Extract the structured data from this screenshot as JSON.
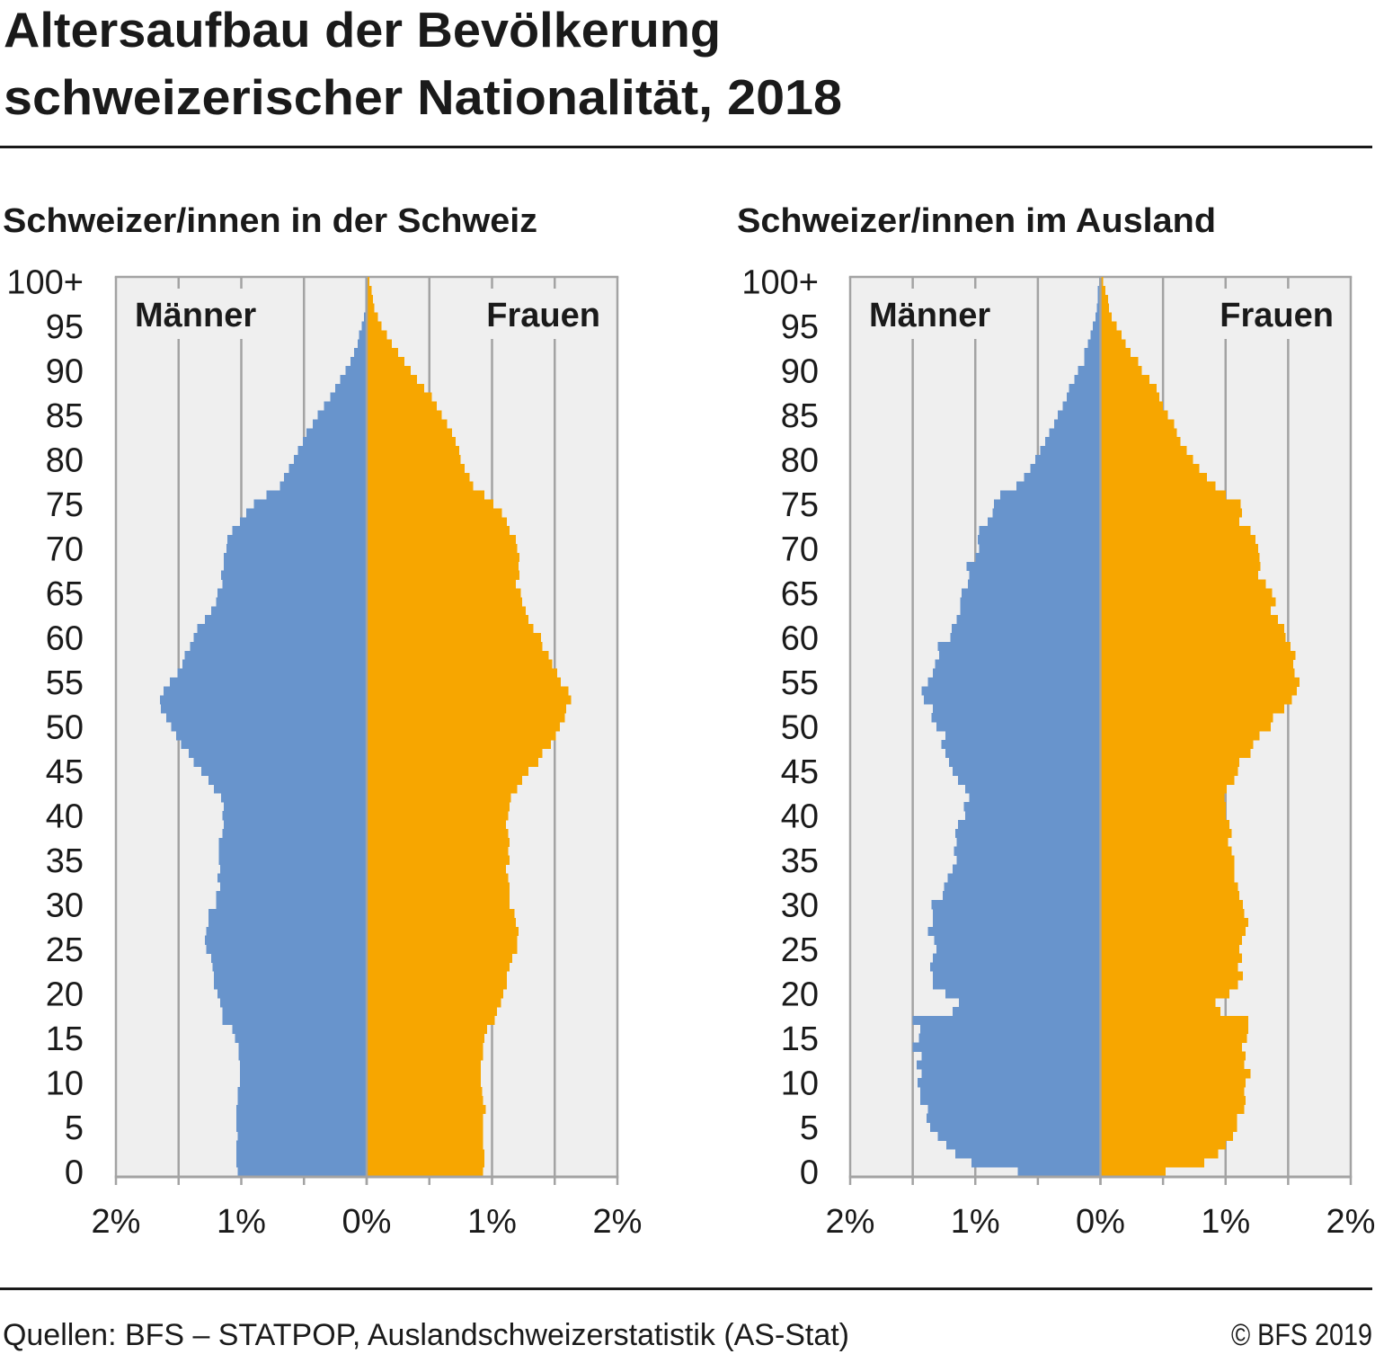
{
  "header": {
    "title_line1": "Altersaufbau der Bevölkerung",
    "title_line2": "schweizerischer Nationalität, 2018"
  },
  "footer": {
    "source": "Quellen: BFS – STATPOP, Auslandschweizerstatistik (AS-Stat)",
    "copyright": "© BFS 2019"
  },
  "colors": {
    "male": "#6894cc",
    "female": "#f7a600",
    "plot_background": "#efefef",
    "grid": "#a3a3a3",
    "text": "#1a1a1a"
  },
  "chart_data": [
    {
      "type": "bar",
      "subtype": "population-pyramid",
      "title": "Schweizer/innen in der Schweiz",
      "xlabel": "",
      "ylabel": "",
      "unit": "%",
      "xlim": [
        -2,
        2
      ],
      "ylim": [
        0,
        100
      ],
      "grid": true,
      "grid_step": 0.5,
      "xtick_values": [
        -2,
        -1,
        0,
        1,
        2
      ],
      "xtick_labels": [
        "2%",
        "1%",
        "0%",
        "1%",
        "2%"
      ],
      "ytick_values": [
        0,
        5,
        10,
        15,
        20,
        25,
        30,
        35,
        40,
        45,
        50,
        55,
        60,
        65,
        70,
        75,
        80,
        85,
        90,
        95,
        100
      ],
      "ytick_labels": [
        "0",
        "5",
        "10",
        "15",
        "20",
        "25",
        "30",
        "35",
        "40",
        "45",
        "50",
        "55",
        "60",
        "65",
        "70",
        "75",
        "80",
        "85",
        "90",
        "95",
        "100+"
      ],
      "categories": [
        "0",
        "1",
        "2",
        "3",
        "4",
        "5",
        "6",
        "7",
        "8",
        "9",
        "10",
        "11",
        "12",
        "13",
        "14",
        "15",
        "16",
        "17",
        "18",
        "19",
        "20",
        "21",
        "22",
        "23",
        "24",
        "25",
        "26",
        "27",
        "28",
        "29",
        "30",
        "31",
        "32",
        "33",
        "34",
        "35",
        "36",
        "37",
        "38",
        "39",
        "40",
        "41",
        "42",
        "43",
        "44",
        "45",
        "46",
        "47",
        "48",
        "49",
        "50",
        "51",
        "52",
        "53",
        "54",
        "55",
        "56",
        "57",
        "58",
        "59",
        "60",
        "61",
        "62",
        "63",
        "64",
        "65",
        "66",
        "67",
        "68",
        "69",
        "70",
        "71",
        "72",
        "73",
        "74",
        "75",
        "76",
        "77",
        "78",
        "79",
        "80",
        "81",
        "82",
        "83",
        "84",
        "85",
        "86",
        "87",
        "88",
        "89",
        "90",
        "91",
        "92",
        "93",
        "94",
        "95",
        "96",
        "97",
        "98",
        "99",
        "100+"
      ],
      "series": [
        {
          "name": "Männer",
          "side": "left",
          "label_position": "top-left",
          "values": [
            1.03,
            1.04,
            1.04,
            1.04,
            1.03,
            1.04,
            1.04,
            1.04,
            1.03,
            1.03,
            1.01,
            1.01,
            1.01,
            1.02,
            1.02,
            1.05,
            1.07,
            1.15,
            1.15,
            1.17,
            1.19,
            1.22,
            1.22,
            1.23,
            1.24,
            1.28,
            1.29,
            1.28,
            1.26,
            1.26,
            1.2,
            1.2,
            1.17,
            1.19,
            1.17,
            1.18,
            1.18,
            1.18,
            1.15,
            1.14,
            1.15,
            1.14,
            1.16,
            1.22,
            1.26,
            1.32,
            1.38,
            1.42,
            1.48,
            1.52,
            1.56,
            1.6,
            1.64,
            1.65,
            1.62,
            1.57,
            1.51,
            1.47,
            1.45,
            1.41,
            1.38,
            1.35,
            1.29,
            1.24,
            1.2,
            1.19,
            1.15,
            1.16,
            1.14,
            1.14,
            1.12,
            1.11,
            1.07,
            1.01,
            0.96,
            0.9,
            0.8,
            0.69,
            0.66,
            0.62,
            0.58,
            0.55,
            0.51,
            0.48,
            0.43,
            0.39,
            0.34,
            0.29,
            0.25,
            0.21,
            0.17,
            0.13,
            0.1,
            0.07,
            0.06,
            0.04,
            0.02,
            0.01,
            0.01,
            0.01,
            0.01
          ]
        },
        {
          "name": "Frauen",
          "side": "right",
          "label_position": "top-right",
          "values": [
            0.93,
            0.94,
            0.94,
            0.93,
            0.93,
            0.93,
            0.93,
            0.95,
            0.93,
            0.92,
            0.91,
            0.91,
            0.91,
            0.93,
            0.93,
            0.94,
            0.96,
            1.02,
            1.04,
            1.07,
            1.09,
            1.12,
            1.12,
            1.14,
            1.16,
            1.2,
            1.2,
            1.21,
            1.19,
            1.18,
            1.14,
            1.14,
            1.14,
            1.13,
            1.11,
            1.14,
            1.13,
            1.14,
            1.13,
            1.11,
            1.13,
            1.14,
            1.15,
            1.2,
            1.24,
            1.29,
            1.37,
            1.4,
            1.47,
            1.51,
            1.54,
            1.58,
            1.59,
            1.63,
            1.61,
            1.55,
            1.52,
            1.48,
            1.45,
            1.4,
            1.39,
            1.33,
            1.29,
            1.27,
            1.24,
            1.23,
            1.19,
            1.22,
            1.21,
            1.22,
            1.2,
            1.19,
            1.14,
            1.12,
            1.08,
            1.01,
            0.94,
            0.85,
            0.82,
            0.78,
            0.75,
            0.74,
            0.71,
            0.68,
            0.64,
            0.6,
            0.56,
            0.52,
            0.46,
            0.4,
            0.35,
            0.3,
            0.25,
            0.2,
            0.16,
            0.12,
            0.09,
            0.06,
            0.05,
            0.04,
            0.02
          ]
        }
      ]
    },
    {
      "type": "bar",
      "subtype": "population-pyramid",
      "title": "Schweizer/innen im Ausland",
      "xlabel": "",
      "ylabel": "",
      "unit": "%",
      "xlim": [
        -2,
        2
      ],
      "ylim": [
        0,
        100
      ],
      "grid": true,
      "grid_step": 0.5,
      "xtick_values": [
        -2,
        -1,
        0,
        1,
        2
      ],
      "xtick_labels": [
        "2%",
        "1%",
        "0%",
        "1%",
        "2%"
      ],
      "ytick_values": [
        0,
        5,
        10,
        15,
        20,
        25,
        30,
        35,
        40,
        45,
        50,
        55,
        60,
        65,
        70,
        75,
        80,
        85,
        90,
        95,
        100
      ],
      "ytick_labels": [
        "0",
        "5",
        "10",
        "15",
        "20",
        "25",
        "30",
        "35",
        "40",
        "45",
        "50",
        "55",
        "60",
        "65",
        "70",
        "75",
        "80",
        "85",
        "90",
        "95",
        "100+"
      ],
      "categories": [
        "0",
        "1",
        "2",
        "3",
        "4",
        "5",
        "6",
        "7",
        "8",
        "9",
        "10",
        "11",
        "12",
        "13",
        "14",
        "15",
        "16",
        "17",
        "18",
        "19",
        "20",
        "21",
        "22",
        "23",
        "24",
        "25",
        "26",
        "27",
        "28",
        "29",
        "30",
        "31",
        "32",
        "33",
        "34",
        "35",
        "36",
        "37",
        "38",
        "39",
        "40",
        "41",
        "42",
        "43",
        "44",
        "45",
        "46",
        "47",
        "48",
        "49",
        "50",
        "51",
        "52",
        "53",
        "54",
        "55",
        "56",
        "57",
        "58",
        "59",
        "60",
        "61",
        "62",
        "63",
        "64",
        "65",
        "66",
        "67",
        "68",
        "69",
        "70",
        "71",
        "72",
        "73",
        "74",
        "75",
        "76",
        "77",
        "78",
        "79",
        "80",
        "81",
        "82",
        "83",
        "84",
        "85",
        "86",
        "87",
        "88",
        "89",
        "90",
        "91",
        "92",
        "93",
        "94",
        "95",
        "96",
        "97",
        "98",
        "99",
        "100+"
      ],
      "series": [
        {
          "name": "Männer",
          "side": "left",
          "label_position": "top-left",
          "values": [
            0.66,
            1.03,
            1.16,
            1.23,
            1.3,
            1.36,
            1.39,
            1.38,
            1.44,
            1.44,
            1.46,
            1.43,
            1.47,
            1.43,
            1.5,
            1.45,
            1.44,
            1.5,
            1.18,
            1.13,
            1.24,
            1.34,
            1.34,
            1.36,
            1.34,
            1.31,
            1.33,
            1.38,
            1.34,
            1.34,
            1.35,
            1.26,
            1.25,
            1.22,
            1.18,
            1.15,
            1.17,
            1.15,
            1.16,
            1.14,
            1.08,
            1.09,
            1.05,
            1.08,
            1.14,
            1.18,
            1.21,
            1.24,
            1.27,
            1.24,
            1.31,
            1.35,
            1.34,
            1.41,
            1.43,
            1.38,
            1.34,
            1.32,
            1.29,
            1.3,
            1.2,
            1.19,
            1.15,
            1.12,
            1.12,
            1.11,
            1.06,
            1.05,
            1.07,
            1.0,
            0.97,
            0.98,
            0.97,
            0.9,
            0.86,
            0.85,
            0.8,
            0.67,
            0.61,
            0.56,
            0.52,
            0.48,
            0.44,
            0.41,
            0.37,
            0.34,
            0.3,
            0.27,
            0.25,
            0.21,
            0.18,
            0.13,
            0.13,
            0.1,
            0.08,
            0.06,
            0.04,
            0.03,
            0.02,
            0.02,
            0.01
          ]
        },
        {
          "name": "Frauen",
          "side": "right",
          "label_position": "top-right",
          "values": [
            0.52,
            0.83,
            0.94,
            1.0,
            1.06,
            1.09,
            1.09,
            1.15,
            1.16,
            1.15,
            1.16,
            1.2,
            1.15,
            1.16,
            1.13,
            1.17,
            1.18,
            1.18,
            0.96,
            0.92,
            1.03,
            1.1,
            1.14,
            1.1,
            1.13,
            1.11,
            1.13,
            1.16,
            1.18,
            1.15,
            1.14,
            1.11,
            1.1,
            1.07,
            1.07,
            1.07,
            1.05,
            1.02,
            1.05,
            1.03,
            1.0,
            1.0,
            0.99,
            1.01,
            1.07,
            1.1,
            1.11,
            1.2,
            1.22,
            1.27,
            1.36,
            1.38,
            1.47,
            1.53,
            1.57,
            1.59,
            1.55,
            1.54,
            1.56,
            1.52,
            1.48,
            1.47,
            1.42,
            1.36,
            1.4,
            1.37,
            1.32,
            1.26,
            1.28,
            1.27,
            1.26,
            1.24,
            1.2,
            1.11,
            1.13,
            1.12,
            1.0,
            0.92,
            0.85,
            0.79,
            0.74,
            0.69,
            0.64,
            0.61,
            0.59,
            0.54,
            0.5,
            0.47,
            0.45,
            0.39,
            0.33,
            0.3,
            0.24,
            0.2,
            0.17,
            0.13,
            0.09,
            0.07,
            0.06,
            0.04,
            0.02
          ]
        }
      ]
    }
  ]
}
